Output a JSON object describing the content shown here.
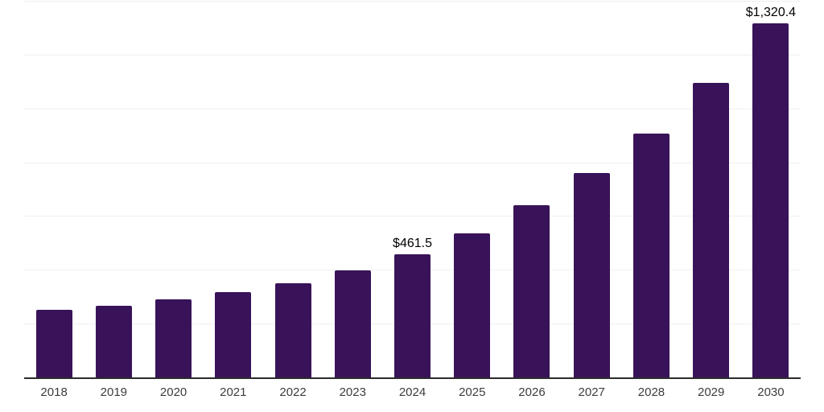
{
  "colors": {
    "background": "#ffffff",
    "bar": "#391359",
    "gridline": "#f0f0f0",
    "axis_line": "#2b2b2b",
    "tick_label": "#3c3c3c",
    "data_label": "#000000"
  },
  "chart_data": {
    "type": "bar",
    "title": "",
    "xlabel": "",
    "ylabel": "",
    "categories": [
      "2018",
      "2019",
      "2020",
      "2021",
      "2022",
      "2023",
      "2024",
      "2025",
      "2026",
      "2027",
      "2028",
      "2029",
      "2030"
    ],
    "values": [
      255,
      270,
      294,
      321,
      354,
      400,
      461.5,
      540,
      643,
      764,
      909,
      1097,
      1320.4
    ],
    "data_labels": [
      "",
      "",
      "",
      "",
      "",
      "",
      "$461.5",
      "",
      "",
      "",
      "",
      "",
      "$1,320.4"
    ],
    "ylim": [
      0,
      1400
    ],
    "grid_interval": 200,
    "grid": "horizontal-only",
    "y_axis_labels_visible": false,
    "legend": "none",
    "bar_color": "#391359"
  }
}
